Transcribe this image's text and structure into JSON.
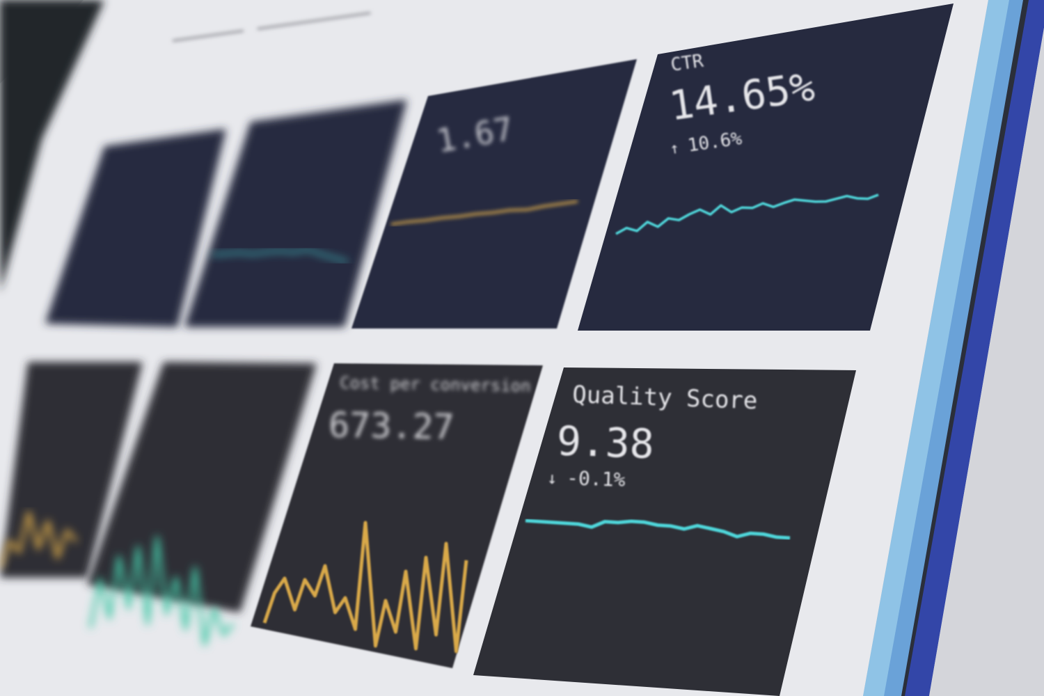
{
  "dashboard": {
    "cards": [
      {
        "id": "card-1",
        "label": "",
        "value": "",
        "delta": "",
        "color": "#d9a94a",
        "series": []
      },
      {
        "id": "card-2",
        "label": "",
        "value": "",
        "delta": "",
        "color": "#45c9c9",
        "series": [
          5,
          5.2,
          5.4,
          5.3,
          5.6,
          5.8,
          5.7,
          6.1,
          5.6,
          5.2,
          4.8
        ]
      },
      {
        "id": "card-3",
        "label": "",
        "value": "1.67",
        "delta": "",
        "color": "#d9a94a",
        "series": [
          5,
          5.1,
          5.1,
          5.2,
          5.2,
          5.3,
          5.3,
          5.4,
          5.3,
          5.5,
          5.6,
          5.7
        ]
      },
      {
        "id": "card-4",
        "label": "CTR",
        "value": "14.65%",
        "delta": "10.6%",
        "delta_direction": "up",
        "color": "#4fd8dc",
        "series": [
          3,
          3.8,
          3.2,
          4.5,
          3.6,
          4.8,
          4.4,
          5.2,
          5.8,
          4.9,
          6.2,
          5.0,
          5.6,
          5.4,
          6.0,
          5.3,
          5.8,
          6.2,
          5.9,
          5.6,
          5.5,
          5.8,
          6.1,
          5.6,
          5.4,
          5.9
        ]
      },
      {
        "id": "card-5",
        "label": "",
        "value": "",
        "delta": "",
        "color": "#d9a94a",
        "series": [
          2,
          4,
          3,
          6,
          3,
          5,
          2,
          4,
          3
        ]
      },
      {
        "id": "card-6",
        "label": "",
        "value": "",
        "delta": "",
        "color": "#45c9a8",
        "series": [
          1,
          5,
          2,
          7,
          3,
          8,
          2,
          9,
          3,
          6,
          2,
          7,
          1,
          4,
          2,
          3
        ]
      },
      {
        "id": "card-7",
        "label": "Cost per conversion",
        "value": "673.27",
        "delta": "",
        "color": "#d9a94a",
        "series": [
          2,
          4,
          5,
          3,
          5,
          4,
          6,
          3,
          4,
          2,
          9,
          1,
          4,
          2,
          6,
          1,
          7,
          2,
          8,
          1,
          7
        ]
      },
      {
        "id": "card-8",
        "label": "Quality Score",
        "value": "9.38",
        "delta": "-0.1%",
        "delta_direction": "down",
        "color": "#4fd8dc",
        "series": [
          5,
          5,
          5,
          5,
          5,
          4.9,
          5.2,
          5.2,
          5.3,
          5.3,
          5.2,
          5.2,
          5.1,
          5.3,
          5.2,
          5.1,
          4.9,
          5.1,
          5.1,
          5,
          5
        ]
      }
    ],
    "colors": {
      "panel": "#e9eaee",
      "card": "#2c2f3c",
      "bezel_blue": "#3a4fb0",
      "bezel_light": "#8fc3e6"
    }
  }
}
